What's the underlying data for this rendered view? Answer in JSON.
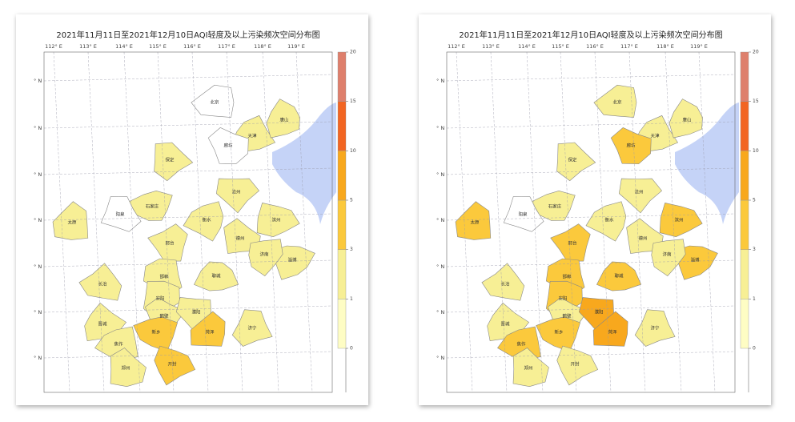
{
  "maps": [
    {
      "title": "2021年11月11日至2021年12月10日AQI轻度及以上污染频次空间分布图",
      "lon_labels": [
        "112° E",
        "113° E",
        "114° E",
        "115° E",
        "116° E",
        "117° E",
        "118° E",
        "119° E"
      ],
      "lat_labels": [
        "° N",
        "° N",
        "° N",
        "° N",
        "° N",
        "° N",
        "° N"
      ],
      "colorbar": {
        "ticks": [
          0,
          1,
          3,
          5,
          10,
          15,
          20
        ],
        "colors": [
          "#fefdc4",
          "#f7ef95",
          "#fbc93c",
          "#f8a81d",
          "#f26522",
          "#de7f6c"
        ]
      },
      "regions": [
        {
          "label": "北京",
          "color": "#ffffff"
        },
        {
          "label": "天津",
          "color": "#f7ef95"
        },
        {
          "label": "唐山",
          "color": "#f7ef95"
        },
        {
          "label": "保定",
          "color": "#f7ef95"
        },
        {
          "label": "廊坊",
          "color": "#ffffff"
        },
        {
          "label": "沧州",
          "color": "#f7ef95"
        },
        {
          "label": "石家庄",
          "color": "#f7ef95"
        },
        {
          "label": "衡水",
          "color": "#f7ef95"
        },
        {
          "label": "太原",
          "color": "#f7ef95"
        },
        {
          "label": "阳泉",
          "color": "#ffffff"
        },
        {
          "label": "德州",
          "color": "#f7ef95"
        },
        {
          "label": "滨州",
          "color": "#f7ef95"
        },
        {
          "label": "淄博",
          "color": "#f7ef95"
        },
        {
          "label": "济南",
          "color": "#f7ef95"
        },
        {
          "label": "邢台",
          "color": "#f7ef95"
        },
        {
          "label": "邯郸",
          "color": "#f7ef95"
        },
        {
          "label": "长治",
          "color": "#f7ef95"
        },
        {
          "label": "聊城",
          "color": "#f7ef95"
        },
        {
          "label": "晋城",
          "color": "#f7ef95"
        },
        {
          "label": "安阳",
          "color": "#f7ef95"
        },
        {
          "label": "鹤壁",
          "color": "#f7ef95"
        },
        {
          "label": "濮阳",
          "color": "#f7ef95"
        },
        {
          "label": "新乡",
          "color": "#fbc93c"
        },
        {
          "label": "焦作",
          "color": "#f7ef95"
        },
        {
          "label": "菏泽",
          "color": "#fbc93c"
        },
        {
          "label": "济宁",
          "color": "#f7ef95"
        },
        {
          "label": "郑州",
          "color": "#f7ef95"
        },
        {
          "label": "开封",
          "color": "#fbc93c"
        }
      ]
    },
    {
      "title": "2021年11月11日至2021年12月10日AQI轻度及以上污染频次空间分布图",
      "lon_labels": [
        "112° E",
        "113° E",
        "114° E",
        "115° E",
        "116° E",
        "117° E",
        "118° E",
        "119° E"
      ],
      "lat_labels": [
        "° N",
        "° N",
        "° N",
        "° N",
        "° N",
        "° N",
        "° N"
      ],
      "colorbar": {
        "ticks": [
          0,
          1,
          3,
          5,
          10,
          15,
          20
        ],
        "colors": [
          "#fefdc4",
          "#f7ef95",
          "#fbc93c",
          "#f8a81d",
          "#f26522",
          "#de7f6c"
        ]
      },
      "regions": [
        {
          "label": "北京",
          "color": "#f7ef95"
        },
        {
          "label": "天津",
          "color": "#f7ef95"
        },
        {
          "label": "唐山",
          "color": "#f7ef95"
        },
        {
          "label": "保定",
          "color": "#f7ef95"
        },
        {
          "label": "廊坊",
          "color": "#fbc93c"
        },
        {
          "label": "沧州",
          "color": "#f7ef95"
        },
        {
          "label": "石家庄",
          "color": "#f7ef95"
        },
        {
          "label": "衡水",
          "color": "#f7ef95"
        },
        {
          "label": "太原",
          "color": "#fbc93c"
        },
        {
          "label": "阳泉",
          "color": "#ffffff"
        },
        {
          "label": "德州",
          "color": "#f7ef95"
        },
        {
          "label": "滨州",
          "color": "#fbc93c"
        },
        {
          "label": "淄博",
          "color": "#fbc93c"
        },
        {
          "label": "济南",
          "color": "#f7ef95"
        },
        {
          "label": "邢台",
          "color": "#fbc93c"
        },
        {
          "label": "邯郸",
          "color": "#fbc93c"
        },
        {
          "label": "长治",
          "color": "#f7ef95"
        },
        {
          "label": "聊城",
          "color": "#fbc93c"
        },
        {
          "label": "晋城",
          "color": "#f7ef95"
        },
        {
          "label": "安阳",
          "color": "#fbc93c"
        },
        {
          "label": "鹤壁",
          "color": "#f7ef95"
        },
        {
          "label": "濮阳",
          "color": "#f8a81d"
        },
        {
          "label": "新乡",
          "color": "#fbc93c"
        },
        {
          "label": "焦作",
          "color": "#fbc93c"
        },
        {
          "label": "菏泽",
          "color": "#f8a81d"
        },
        {
          "label": "济宁",
          "color": "#f7ef95"
        },
        {
          "label": "郑州",
          "color": "#f7ef95"
        },
        {
          "label": "开封",
          "color": "#f7ef95"
        }
      ]
    }
  ]
}
